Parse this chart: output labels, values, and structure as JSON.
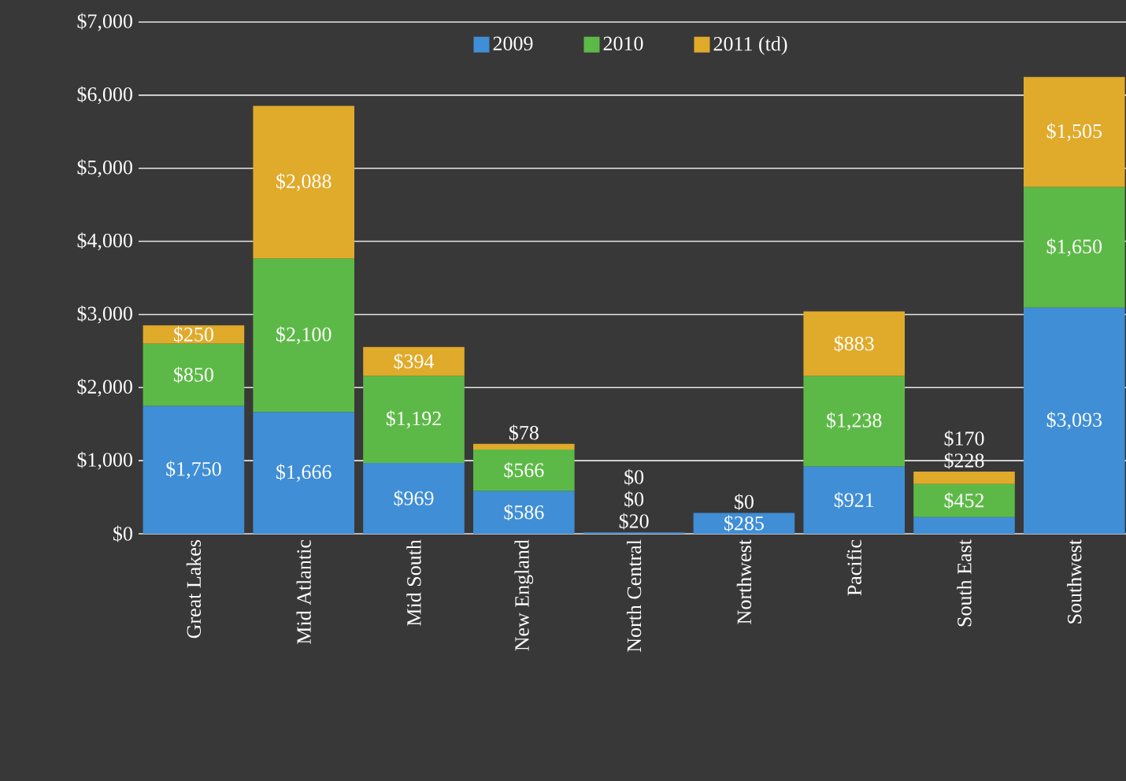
{
  "chart_data": {
    "type": "bar",
    "stacked": true,
    "grid": "y",
    "legend": "top",
    "categories": [
      "Great Lakes",
      "Mid Atlantic",
      "Mid South",
      "New England",
      "North Central",
      "Northwest",
      "Pacific",
      "South East",
      "Southwest"
    ],
    "series": [
      {
        "name": "2009",
        "color": "#3f8ed6",
        "values": [
          1750,
          1666,
          969,
          586,
          20,
          285,
          921,
          228,
          3093
        ],
        "value_labels": [
          "$1,750",
          "$1,666",
          "$969",
          "$586",
          "$20",
          "$285",
          "$921",
          "$228",
          "$3,093"
        ]
      },
      {
        "name": "2010",
        "color": "#5db947",
        "values": [
          850,
          2100,
          1192,
          566,
          0,
          0,
          1238,
          452,
          1650
        ],
        "value_labels": [
          "$850",
          "$2,100",
          "$1,192",
          "$566",
          "$0",
          "$0",
          "$1,238",
          "$452",
          "$1,650"
        ]
      },
      {
        "name": "2011 (td)",
        "color": "#e0aa2a",
        "values": [
          250,
          2088,
          394,
          78,
          0,
          null,
          883,
          170,
          1505
        ],
        "value_labels": [
          "$250",
          "$2,088",
          "$394",
          "$78",
          "$0",
          null,
          "$883",
          "$170",
          "$1,505"
        ]
      }
    ],
    "ylim": [
      0,
      7000
    ],
    "yticks": [
      {
        "value": 0,
        "label": "$0"
      },
      {
        "value": 1000,
        "label": "$1,000"
      },
      {
        "value": 2000,
        "label": "$2,000"
      },
      {
        "value": 3000,
        "label": "$3,000"
      },
      {
        "value": 4000,
        "label": "$4,000"
      },
      {
        "value": 5000,
        "label": "$5,000"
      },
      {
        "value": 6000,
        "label": "$6,000"
      },
      {
        "value": 7000,
        "label": "$7,000"
      }
    ]
  }
}
